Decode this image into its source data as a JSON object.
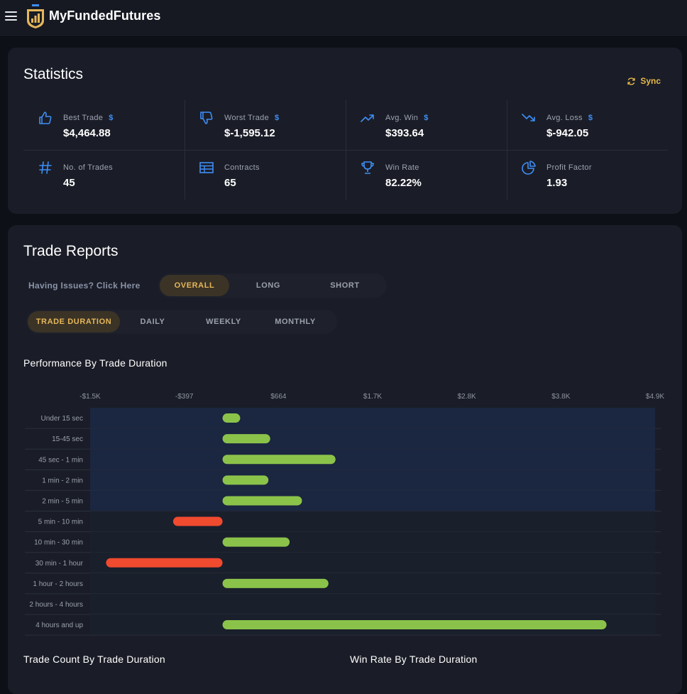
{
  "header": {
    "brand": "MyFundedFutures"
  },
  "statistics": {
    "title": "Statistics",
    "sync_label": "Sync",
    "items": [
      {
        "label": "Best Trade",
        "value": "$4,464.88",
        "dollar": "$",
        "icon": "thumbs-up-icon"
      },
      {
        "label": "Worst Trade",
        "value": "$-1,595.12",
        "dollar": "$",
        "icon": "thumbs-down-icon"
      },
      {
        "label": "Avg. Win",
        "value": "$393.64",
        "dollar": "$",
        "icon": "trending-up-icon"
      },
      {
        "label": "Avg. Loss",
        "value": "$-942.05",
        "dollar": "$",
        "icon": "trending-down-icon"
      },
      {
        "label": "No. of Trades",
        "value": "45",
        "dollar": "",
        "icon": "hash-icon"
      },
      {
        "label": "Contracts",
        "value": "65",
        "dollar": "",
        "icon": "table-icon"
      },
      {
        "label": "Win Rate",
        "value": "82.22%",
        "dollar": "",
        "icon": "trophy-icon"
      },
      {
        "label": "Profit Factor",
        "value": "1.93",
        "dollar": "",
        "icon": "pie-chart-icon"
      }
    ]
  },
  "reports": {
    "title": "Trade Reports",
    "issues_link": "Having Issues? Click Here",
    "side_tabs": [
      "OVERALL",
      "LONG",
      "SHORT"
    ],
    "period_tabs": [
      "TRADE DURATION",
      "DAILY",
      "WEEKLY",
      "MONTHLY"
    ],
    "performance_title": "Performance By Trade Duration",
    "count_title": "Trade Count By Trade Duration",
    "winrate_title": "Win Rate By Trade Duration"
  },
  "colors": {
    "positive": "#8bc34a",
    "negative": "#f04a2f",
    "accent": "#e5b75a",
    "blue": "#3f8ef6"
  },
  "chart_data": {
    "type": "bar",
    "orientation": "horizontal",
    "title": "Performance By Trade Duration",
    "x_tick_labels": [
      "-$1.5K",
      "-$397",
      "$664",
      "$1.7K",
      "$2.8K",
      "$3.8K",
      "$4.9K"
    ],
    "xlim": [
      -1500,
      4900
    ],
    "categories": [
      "Under 15 sec",
      "15-45 sec",
      "45 sec - 1 min",
      "1 min - 2 min",
      "2 min - 5 min",
      "5 min - 10 min",
      "10 min - 30 min",
      "30 min - 1 hour",
      "1 hour - 2 hours",
      "2 hours - 4 hours",
      "4 hours and up"
    ],
    "values": [
      200,
      540,
      1280,
      520,
      900,
      -560,
      760,
      -1320,
      1200,
      0,
      4350
    ],
    "grid": true
  }
}
